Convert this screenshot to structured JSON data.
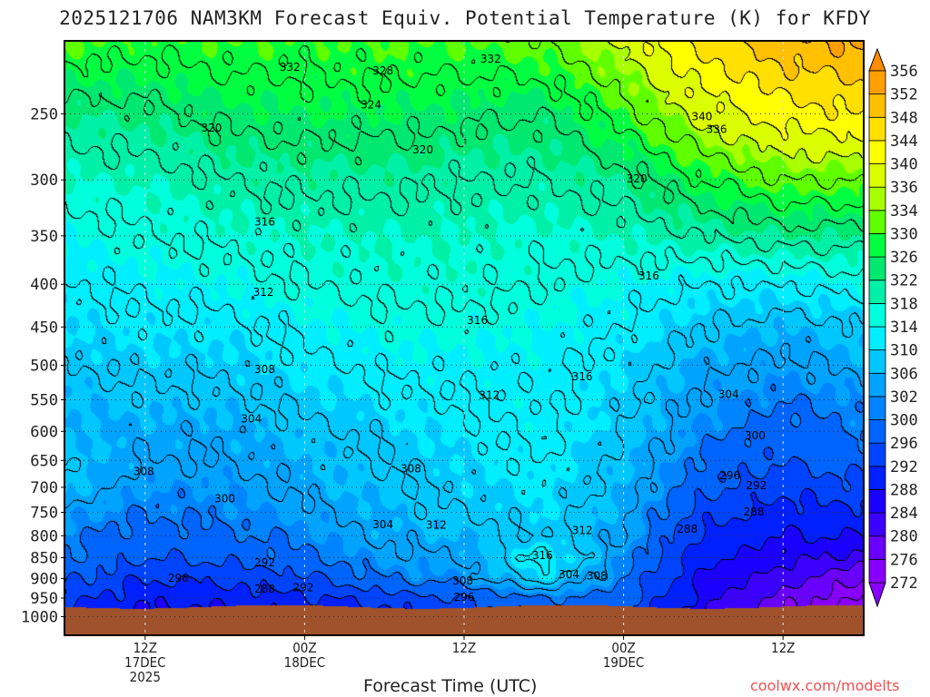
{
  "chart_data": {
    "type": "heatmap",
    "title": "2025121706 NAM3KM Forecast Equiv. Potential Temperature (K) for KFDY",
    "xlabel": "Forecast Time (UTC)",
    "ylabel": "",
    "credit": "coolwx.com/modelts",
    "x_hours_range": [
      0,
      60
    ],
    "y_pressure_range_hpa": [
      205,
      1050
    ],
    "surface_pressure_hpa": 972,
    "ground_color": "#a0522d",
    "y_ticks": [
      250,
      300,
      350,
      400,
      450,
      500,
      550,
      600,
      650,
      700,
      750,
      800,
      850,
      900,
      950,
      1000
    ],
    "x_ticks": [
      {
        "hour": 6,
        "lines": [
          "12Z",
          "17DEC",
          "2025"
        ]
      },
      {
        "hour": 18,
        "lines": [
          "00Z",
          "18DEC"
        ]
      },
      {
        "hour": 30,
        "lines": [
          "12Z"
        ]
      },
      {
        "hour": 42,
        "lines": [
          "00Z",
          "19DEC"
        ]
      },
      {
        "hour": 54,
        "lines": [
          "12Z"
        ]
      }
    ],
    "colorbar": {
      "labels": [
        356,
        352,
        348,
        344,
        340,
        336,
        334,
        330,
        326,
        322,
        318,
        314,
        310,
        306,
        302,
        300,
        296,
        292,
        288,
        284,
        280,
        276,
        272
      ],
      "colors_bottom_to_top": [
        "#8a00ff",
        "#8800ff",
        "#6a00ff",
        "#3c00ff",
        "#1a00ff",
        "#0020ff",
        "#0044ff",
        "#0064ff",
        "#0084ff",
        "#00a4ff",
        "#00c8ff",
        "#00eeff",
        "#00ffdc",
        "#00f0a8",
        "#00e870",
        "#00ff40",
        "#60ff00",
        "#a8ff00",
        "#dcff00",
        "#ffff00",
        "#ffe000",
        "#ffc000",
        "#ffa000",
        "#ff8c00"
      ]
    },
    "grid_hours": [
      0,
      6,
      12,
      18,
      24,
      30,
      36,
      42,
      48,
      54,
      60
    ],
    "grid_pressures": [
      200,
      250,
      300,
      350,
      400,
      450,
      500,
      550,
      600,
      650,
      700,
      750,
      800,
      850,
      900,
      950,
      975
    ],
    "theta_e": [
      [
        332,
        330,
        331,
        330,
        331,
        331,
        333,
        338,
        346,
        352,
        354
      ],
      [
        322,
        323,
        325,
        326,
        326,
        325,
        324,
        330,
        338,
        342,
        344
      ],
      [
        318,
        318,
        320,
        321,
        321,
        320,
        320,
        322,
        328,
        332,
        332
      ],
      [
        314,
        316,
        317,
        318,
        318,
        318,
        317,
        318,
        320,
        322,
        322
      ],
      [
        312,
        313,
        314,
        316,
        317,
        317,
        316,
        314,
        312,
        312,
        314
      ],
      [
        310,
        311,
        311,
        313,
        315,
        315,
        314,
        312,
        308,
        306,
        308
      ],
      [
        308,
        309,
        309,
        311,
        313,
        313,
        313,
        310,
        305,
        303,
        305
      ],
      [
        306,
        307,
        307,
        309,
        311,
        312,
        313,
        309,
        303,
        300,
        302
      ],
      [
        306,
        305,
        305,
        307,
        309,
        311,
        313,
        308,
        301,
        298,
        300
      ],
      [
        308,
        304,
        304,
        306,
        308,
        310,
        312,
        307,
        299,
        296,
        298
      ],
      [
        307,
        302,
        302,
        305,
        307,
        309,
        311,
        306,
        297,
        293,
        295
      ],
      [
        303,
        300,
        301,
        303,
        306,
        308,
        310,
        305,
        294,
        290,
        291
      ],
      [
        301,
        298,
        299,
        301,
        305,
        306,
        309,
        304,
        291,
        288,
        288
      ],
      [
        300,
        296,
        297,
        299,
        303,
        304,
        314,
        302,
        289,
        286,
        282
      ],
      [
        297,
        292,
        293,
        295,
        300,
        302,
        310,
        300,
        287,
        282,
        276
      ],
      [
        294,
        289,
        290,
        291,
        294,
        296,
        300,
        298,
        286,
        278,
        272
      ],
      [
        292,
        288,
        288,
        290,
        292,
        295,
        298,
        297,
        285,
        277,
        270
      ]
    ],
    "contour_interval": 4,
    "contour_labels": [
      {
        "text": "332",
        "hour": 16.9,
        "p": 220
      },
      {
        "text": "328",
        "hour": 23.9,
        "p": 222
      },
      {
        "text": "332",
        "hour": 32.0,
        "p": 215
      },
      {
        "text": "324",
        "hour": 23.0,
        "p": 244
      },
      {
        "text": "340",
        "hour": 47.9,
        "p": 252
      },
      {
        "text": "336",
        "hour": 49.0,
        "p": 261
      },
      {
        "text": "320",
        "hour": 11.0,
        "p": 260
      },
      {
        "text": "320",
        "hour": 26.9,
        "p": 276
      },
      {
        "text": "320",
        "hour": 43.0,
        "p": 299
      },
      {
        "text": "316",
        "hour": 15.0,
        "p": 337
      },
      {
        "text": "316",
        "hour": 43.9,
        "p": 391
      },
      {
        "text": "312",
        "hour": 14.9,
        "p": 409
      },
      {
        "text": "316",
        "hour": 31.0,
        "p": 442
      },
      {
        "text": "308",
        "hour": 15.0,
        "p": 506
      },
      {
        "text": "316",
        "hour": 38.9,
        "p": 516
      },
      {
        "text": "312",
        "hour": 31.9,
        "p": 543
      },
      {
        "text": "304",
        "hour": 49.9,
        "p": 542
      },
      {
        "text": "304",
        "hour": 14.0,
        "p": 580
      },
      {
        "text": "300",
        "hour": 51.9,
        "p": 607
      },
      {
        "text": "308",
        "hour": 5.9,
        "p": 670
      },
      {
        "text": "308",
        "hour": 26.0,
        "p": 665
      },
      {
        "text": "296",
        "hour": 50.0,
        "p": 678
      },
      {
        "text": "292",
        "hour": 52.0,
        "p": 697
      },
      {
        "text": "300",
        "hour": 12.0,
        "p": 722
      },
      {
        "text": "288",
        "hour": 51.8,
        "p": 749
      },
      {
        "text": "304",
        "hour": 23.9,
        "p": 776
      },
      {
        "text": "312",
        "hour": 27.9,
        "p": 777
      },
      {
        "text": "312",
        "hour": 38.9,
        "p": 788
      },
      {
        "text": "288",
        "hour": 46.8,
        "p": 786
      },
      {
        "text": "316",
        "hour": 35.9,
        "p": 845
      },
      {
        "text": "292",
        "hour": 15.0,
        "p": 862
      },
      {
        "text": "304",
        "hour": 37.9,
        "p": 890
      },
      {
        "text": "308",
        "hour": 40.0,
        "p": 893
      },
      {
        "text": "296",
        "hour": 8.5,
        "p": 899
      },
      {
        "text": "308",
        "hour": 29.9,
        "p": 906
      },
      {
        "text": "288",
        "hour": 15.0,
        "p": 927
      },
      {
        "text": "292",
        "hour": 17.9,
        "p": 923
      },
      {
        "text": "296",
        "hour": 30.0,
        "p": 948
      }
    ]
  }
}
